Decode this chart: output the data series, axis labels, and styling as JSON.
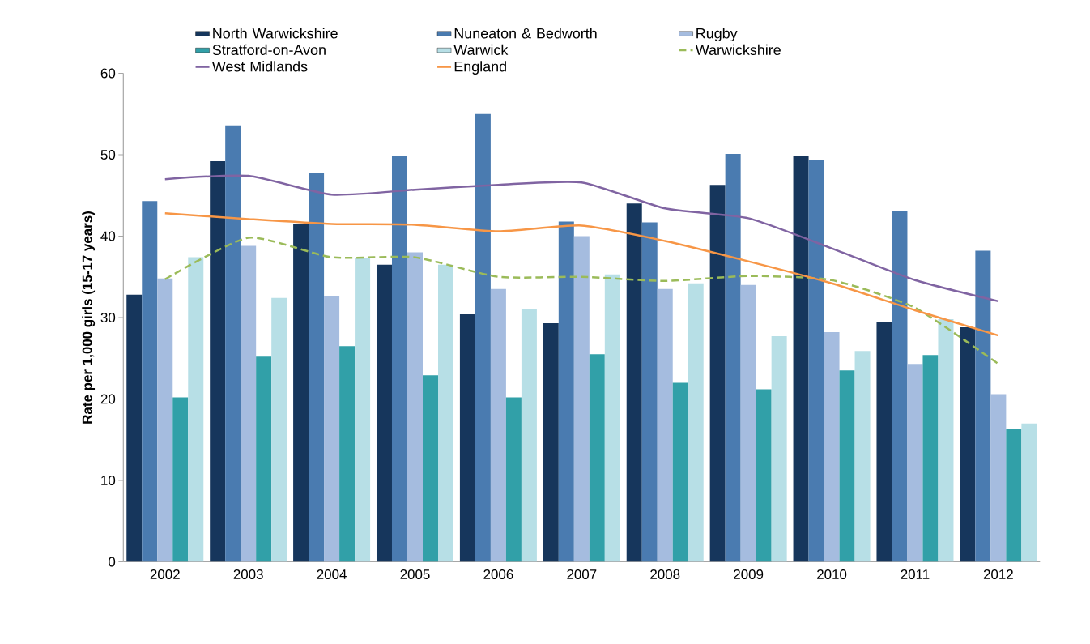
{
  "chart_data": {
    "type": "bar",
    "ylabel": "Rate per 1,000 girls (15-17 years)",
    "categories": [
      "2002",
      "2003",
      "2004",
      "2005",
      "2006",
      "2007",
      "2008",
      "2009",
      "2010",
      "2011",
      "2012"
    ],
    "ylim": [
      0,
      60
    ],
    "yticks": [
      0,
      10,
      20,
      30,
      40,
      50,
      60
    ],
    "legend": "top",
    "series": [
      {
        "name": "North Warwickshire",
        "color": "#16365c",
        "values": [
          32.8,
          49.2,
          41.5,
          36.5,
          30.4,
          29.3,
          44.0,
          46.3,
          49.8,
          29.5,
          28.8
        ]
      },
      {
        "name": "Nuneaton & Bedworth",
        "color": "#4a7bb0",
        "values": [
          44.3,
          53.6,
          47.8,
          49.9,
          55.0,
          41.8,
          41.7,
          50.1,
          49.4,
          43.1,
          38.2
        ]
      },
      {
        "name": "Rugby",
        "color": "#a5bcdf",
        "values": [
          34.8,
          38.8,
          32.6,
          38.0,
          33.5,
          40.0,
          33.5,
          34.0,
          28.2,
          24.3,
          20.6
        ]
      },
      {
        "name": "Stratford-on-Avon",
        "color": "#31a0a8",
        "values": [
          20.2,
          25.2,
          26.5,
          22.9,
          20.2,
          25.5,
          22.0,
          21.2,
          23.5,
          25.4,
          16.3
        ]
      },
      {
        "name": "Warwick",
        "color": "#b7dfe6",
        "values": [
          37.4,
          32.4,
          37.3,
          36.5,
          31.0,
          35.3,
          34.2,
          27.7,
          25.9,
          29.8,
          17.0
        ]
      },
      {
        "name": "Warwickshire",
        "type": "line",
        "line_style": "dashed",
        "color": "#9bbb59",
        "values": [
          34.7,
          39.8,
          37.4,
          37.4,
          35.0,
          35.0,
          34.5,
          35.1,
          34.6,
          31.2,
          24.3
        ]
      },
      {
        "name": "West Midlands",
        "type": "line",
        "line_style": "solid",
        "color": "#8064a2",
        "values": [
          47.0,
          47.4,
          45.1,
          45.7,
          46.3,
          46.6,
          43.4,
          42.2,
          38.5,
          34.6,
          32.0
        ]
      },
      {
        "name": "England",
        "type": "line",
        "line_style": "solid",
        "color": "#f79646",
        "values": [
          42.8,
          42.1,
          41.5,
          41.4,
          40.6,
          41.3,
          39.4,
          36.9,
          34.2,
          30.9,
          27.8
        ]
      }
    ]
  }
}
